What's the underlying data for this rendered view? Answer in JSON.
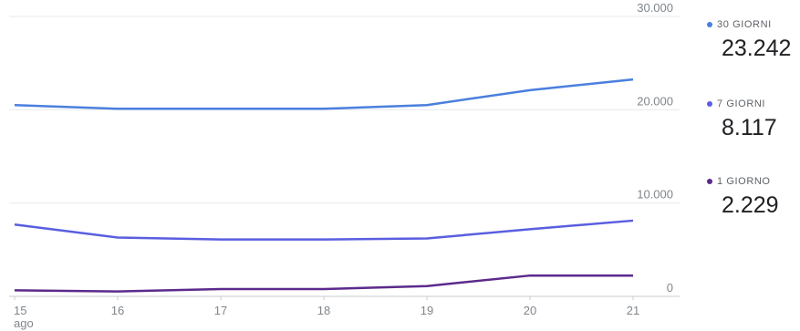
{
  "chart_data": {
    "type": "line",
    "x": [
      "15",
      "16",
      "17",
      "18",
      "19",
      "20",
      "21"
    ],
    "x_sublabel": "ago",
    "ylim": [
      0,
      30000
    ],
    "yticks": [
      "0",
      "10.000",
      "20.000",
      "30.000"
    ],
    "ytick_values": [
      0,
      10000,
      20000,
      30000
    ],
    "grid": true,
    "legend_position": "right",
    "series": [
      {
        "name": "30 GIORNI",
        "color": "#4a7fde",
        "values": [
          20500,
          20100,
          20100,
          20100,
          20500,
          22100,
          23242
        ]
      },
      {
        "name": "7 GIORNI",
        "color": "#5a5ee0",
        "values": [
          7700,
          6300,
          6100,
          6100,
          6200,
          7200,
          8117
        ]
      },
      {
        "name": "1 GIORNO",
        "color": "#5b2a8c",
        "values": [
          650,
          520,
          780,
          780,
          1100,
          2229,
          2229
        ]
      }
    ]
  },
  "legend": [
    {
      "label": "30 GIORNI",
      "value": "23.242",
      "color": "#4a7fde"
    },
    {
      "label": "7 GIORNI",
      "value": "8.117",
      "color": "#5a5ee0"
    },
    {
      "label": "1 GIORNO",
      "value": "2.229",
      "color": "#5b2a8c"
    }
  ]
}
